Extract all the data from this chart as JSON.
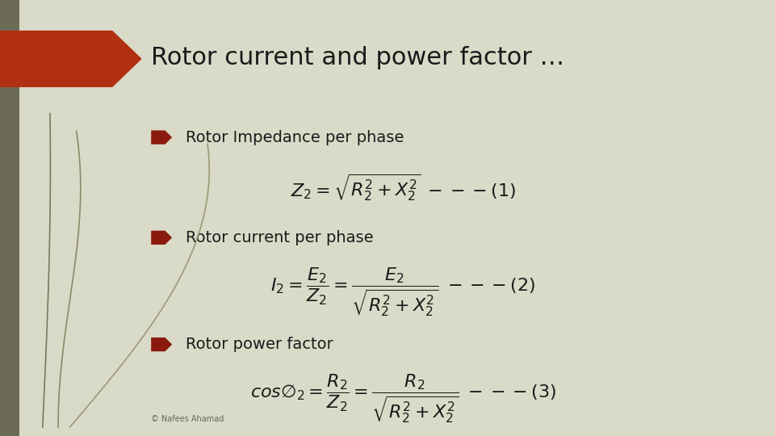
{
  "title": "Rotor current and power factor …",
  "bg_color": "#d9dac8",
  "title_color": "#1a1a1a",
  "title_fontsize": 22,
  "arrow_color": "#b03010",
  "bullet1_label": "Rotor Impedance per phase",
  "bullet2_label": "Rotor current per phase",
  "bullet3_label": "Rotor power factor",
  "copyright": "© Nafees Ahamad",
  "copyright_fontsize": 7,
  "line_colors": [
    "#7a7a60",
    "#6b6b52",
    "#5a5a48"
  ],
  "formula_fontsize": 14,
  "bullet_fontsize": 14
}
